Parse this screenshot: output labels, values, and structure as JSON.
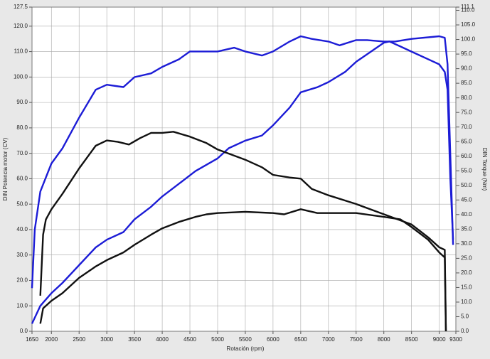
{
  "chart_data": {
    "type": "line",
    "x_label": "Rotación (rpm)",
    "y_label": "DIN Potencia motor (CV)",
    "y2_label": "DIN Torque (Nm)",
    "xlim": [
      1650,
      9300
    ],
    "xticks": [
      1650,
      2000,
      2500,
      3000,
      3500,
      4000,
      4500,
      5000,
      5500,
      6000,
      6500,
      7000,
      7500,
      8000,
      8500,
      9000,
      9300
    ],
    "ylim": [
      0,
      127.5
    ],
    "yticks": [
      {
        "value": 0,
        "label": "0.0"
      },
      {
        "value": 10,
        "label": "10.0"
      },
      {
        "value": 20,
        "label": "20.0"
      },
      {
        "value": 30,
        "label": "30.0"
      },
      {
        "value": 40,
        "label": "40.0"
      },
      {
        "value": 50,
        "label": "50.0"
      },
      {
        "value": 60,
        "label": "60.0"
      },
      {
        "value": 70,
        "label": "70.0"
      },
      {
        "value": 80,
        "label": "80.0"
      },
      {
        "value": 90,
        "label": "90.0"
      },
      {
        "value": 100,
        "label": "100.0"
      },
      {
        "value": 110,
        "label": "110.0"
      },
      {
        "value": 120,
        "label": "120.0"
      },
      {
        "value": 127.5,
        "label": "127.5"
      }
    ],
    "y2lim": [
      0,
      111.1
    ],
    "y2ticks": [
      {
        "value": 0,
        "label": "0.0"
      },
      {
        "value": 5,
        "label": "5.0"
      },
      {
        "value": 10,
        "label": "10.0"
      },
      {
        "value": 15,
        "label": "15.0"
      },
      {
        "value": 20,
        "label": "20.0"
      },
      {
        "value": 25,
        "label": "25.0"
      },
      {
        "value": 30,
        "label": "30.0"
      },
      {
        "value": 35,
        "label": "35.0"
      },
      {
        "value": 40,
        "label": "40.0"
      },
      {
        "value": 45,
        "label": "45.0"
      },
      {
        "value": 50,
        "label": "50.0"
      },
      {
        "value": 55,
        "label": "55.0"
      },
      {
        "value": 60,
        "label": "60.0"
      },
      {
        "value": 65,
        "label": "65.0"
      },
      {
        "value": 70,
        "label": "70.0"
      },
      {
        "value": 75,
        "label": "75.0"
      },
      {
        "value": 80,
        "label": "80.0"
      },
      {
        "value": 85,
        "label": "85.0"
      },
      {
        "value": 90,
        "label": "90.0"
      },
      {
        "value": 95,
        "label": "95.0"
      },
      {
        "value": 100,
        "label": "100.0"
      },
      {
        "value": 105,
        "label": "105.0"
      },
      {
        "value": 110,
        "label": "110.0"
      },
      {
        "value": 111.1,
        "label": "111.1"
      }
    ],
    "grid": true,
    "series": [
      {
        "color": "#1c1cd6",
        "axis": "y",
        "x": [
          1650,
          1800,
          2000,
          2200,
          2500,
          2800,
          3000,
          3300,
          3500,
          3800,
          4000,
          4300,
          4600,
          5000,
          5200,
          5500,
          5800,
          6000,
          6300,
          6500,
          6800,
          7000,
          7300,
          7500,
          7700,
          8000,
          8100,
          8300,
          8500,
          8800,
          9000,
          9100,
          9150,
          9200,
          9250
        ],
        "values": [
          3,
          10,
          15,
          19,
          26,
          33,
          36,
          39,
          44,
          49,
          53,
          58,
          63,
          68,
          72,
          75,
          77,
          81,
          88,
          94,
          96,
          98,
          102,
          106,
          109,
          113.5,
          114,
          112,
          110,
          107,
          105,
          102,
          95,
          60,
          36
        ]
      },
      {
        "color": "#1c1cd6",
        "axis": "y2",
        "x": [
          1650,
          1700,
          1800,
          2000,
          2200,
          2500,
          2800,
          3000,
          3300,
          3500,
          3800,
          4000,
          4300,
          4500,
          5000,
          5300,
          5500,
          5800,
          6000,
          6300,
          6500,
          6700,
          7000,
          7200,
          7500,
          7700,
          8000,
          8200,
          8500,
          9000,
          9100,
          9150,
          9250
        ],
        "values": [
          14.8,
          34.9,
          47.9,
          57.5,
          62.7,
          73.2,
          82.8,
          84.5,
          83.7,
          87.1,
          88.4,
          90.6,
          93.2,
          95.9,
          95.9,
          97.2,
          95.9,
          94.5,
          95.9,
          99.3,
          101.1,
          100.2,
          99.3,
          98.0,
          99.8,
          99.8,
          99.3,
          99.3,
          100.2,
          101.1,
          100.6,
          91.5,
          29.6
        ]
      },
      {
        "color": "#111111",
        "axis": "y2",
        "x": [
          1800,
          1850,
          1900,
          2000,
          2200,
          2500,
          2800,
          3000,
          3200,
          3400,
          3600,
          3800,
          4000,
          4200,
          4500,
          4800,
          5000,
          5500,
          5800,
          6000,
          6300,
          6500,
          6700,
          7000,
          7500,
          8000,
          8500,
          8800,
          9000,
          9100,
          9120
        ],
        "values": [
          12.2,
          33.1,
          38.3,
          41.8,
          47.1,
          55.8,
          63.6,
          65.4,
          64.9,
          64.0,
          66.2,
          68.0,
          68.0,
          68.4,
          66.7,
          64.5,
          62.3,
          58.8,
          56.2,
          53.6,
          52.7,
          52.3,
          48.8,
          46.6,
          43.6,
          40.1,
          36.6,
          32.2,
          28.8,
          27.9,
          0
        ]
      },
      {
        "color": "#111111",
        "axis": "y",
        "x": [
          1800,
          1850,
          2000,
          2200,
          2500,
          2800,
          3000,
          3300,
          3500,
          3800,
          4000,
          4300,
          4600,
          4800,
          5000,
          5500,
          6000,
          6200,
          6500,
          6800,
          7000,
          7500,
          8000,
          8300,
          8500,
          8800,
          9000,
          9100,
          9120
        ],
        "values": [
          3,
          9,
          12,
          15,
          21,
          25.5,
          28,
          31,
          34,
          38,
          40.5,
          43,
          45,
          46,
          46.5,
          47,
          46.5,
          46,
          48,
          46.5,
          46.5,
          46.5,
          45,
          44,
          41,
          36,
          31,
          29,
          0
        ]
      }
    ]
  }
}
